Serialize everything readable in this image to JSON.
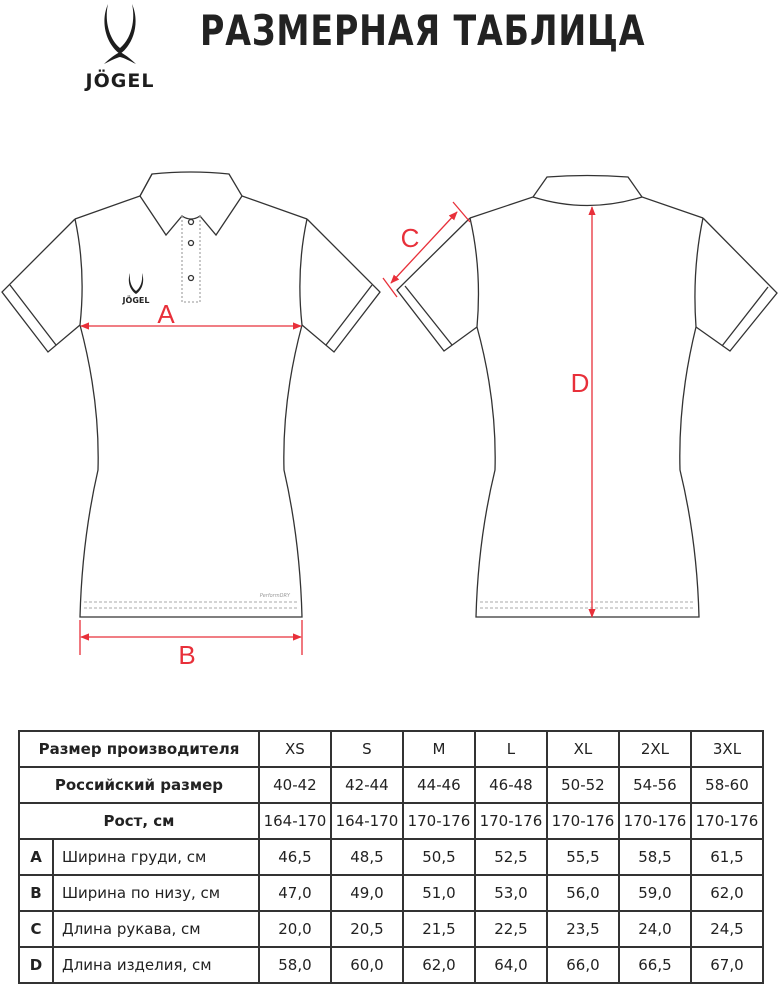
{
  "brand": {
    "logo_text": "JÖGEL"
  },
  "title": "РАЗМЕРНАЯ ТАБЛИЦА",
  "diagram": {
    "labels": {
      "A": "A",
      "B": "B",
      "C": "C",
      "D": "D"
    },
    "front_print": "PerformDRY",
    "chest_logo_text": "JÖGEL",
    "measure_color": "#e8303a"
  },
  "table": {
    "header_label": "Размер производителя",
    "sizes": [
      "XS",
      "S",
      "M",
      "L",
      "XL",
      "2XL",
      "3XL"
    ],
    "russian_label": "Российский размер",
    "russian": [
      "40-42",
      "42-44",
      "44-46",
      "46-48",
      "50-52",
      "54-56",
      "58-60"
    ],
    "height_label": "Рост, см",
    "height": [
      "164-170",
      "164-170",
      "170-176",
      "170-176",
      "170-176",
      "170-176",
      "170-176"
    ],
    "rows": [
      {
        "letter": "A",
        "label": "Ширина груди, см",
        "values": [
          "46,5",
          "48,5",
          "50,5",
          "52,5",
          "55,5",
          "58,5",
          "61,5"
        ]
      },
      {
        "letter": "B",
        "label": "Ширина по низу, см",
        "values": [
          "47,0",
          "49,0",
          "51,0",
          "53,0",
          "56,0",
          "59,0",
          "62,0"
        ]
      },
      {
        "letter": "C",
        "label": "Длина рукава, см",
        "values": [
          "20,0",
          "20,5",
          "21,5",
          "22,5",
          "23,5",
          "24,0",
          "24,5"
        ]
      },
      {
        "letter": "D",
        "label": "Длина изделия, см",
        "values": [
          "58,0",
          "60,0",
          "62,0",
          "64,0",
          "66,0",
          "66,5",
          "67,0"
        ]
      }
    ]
  }
}
